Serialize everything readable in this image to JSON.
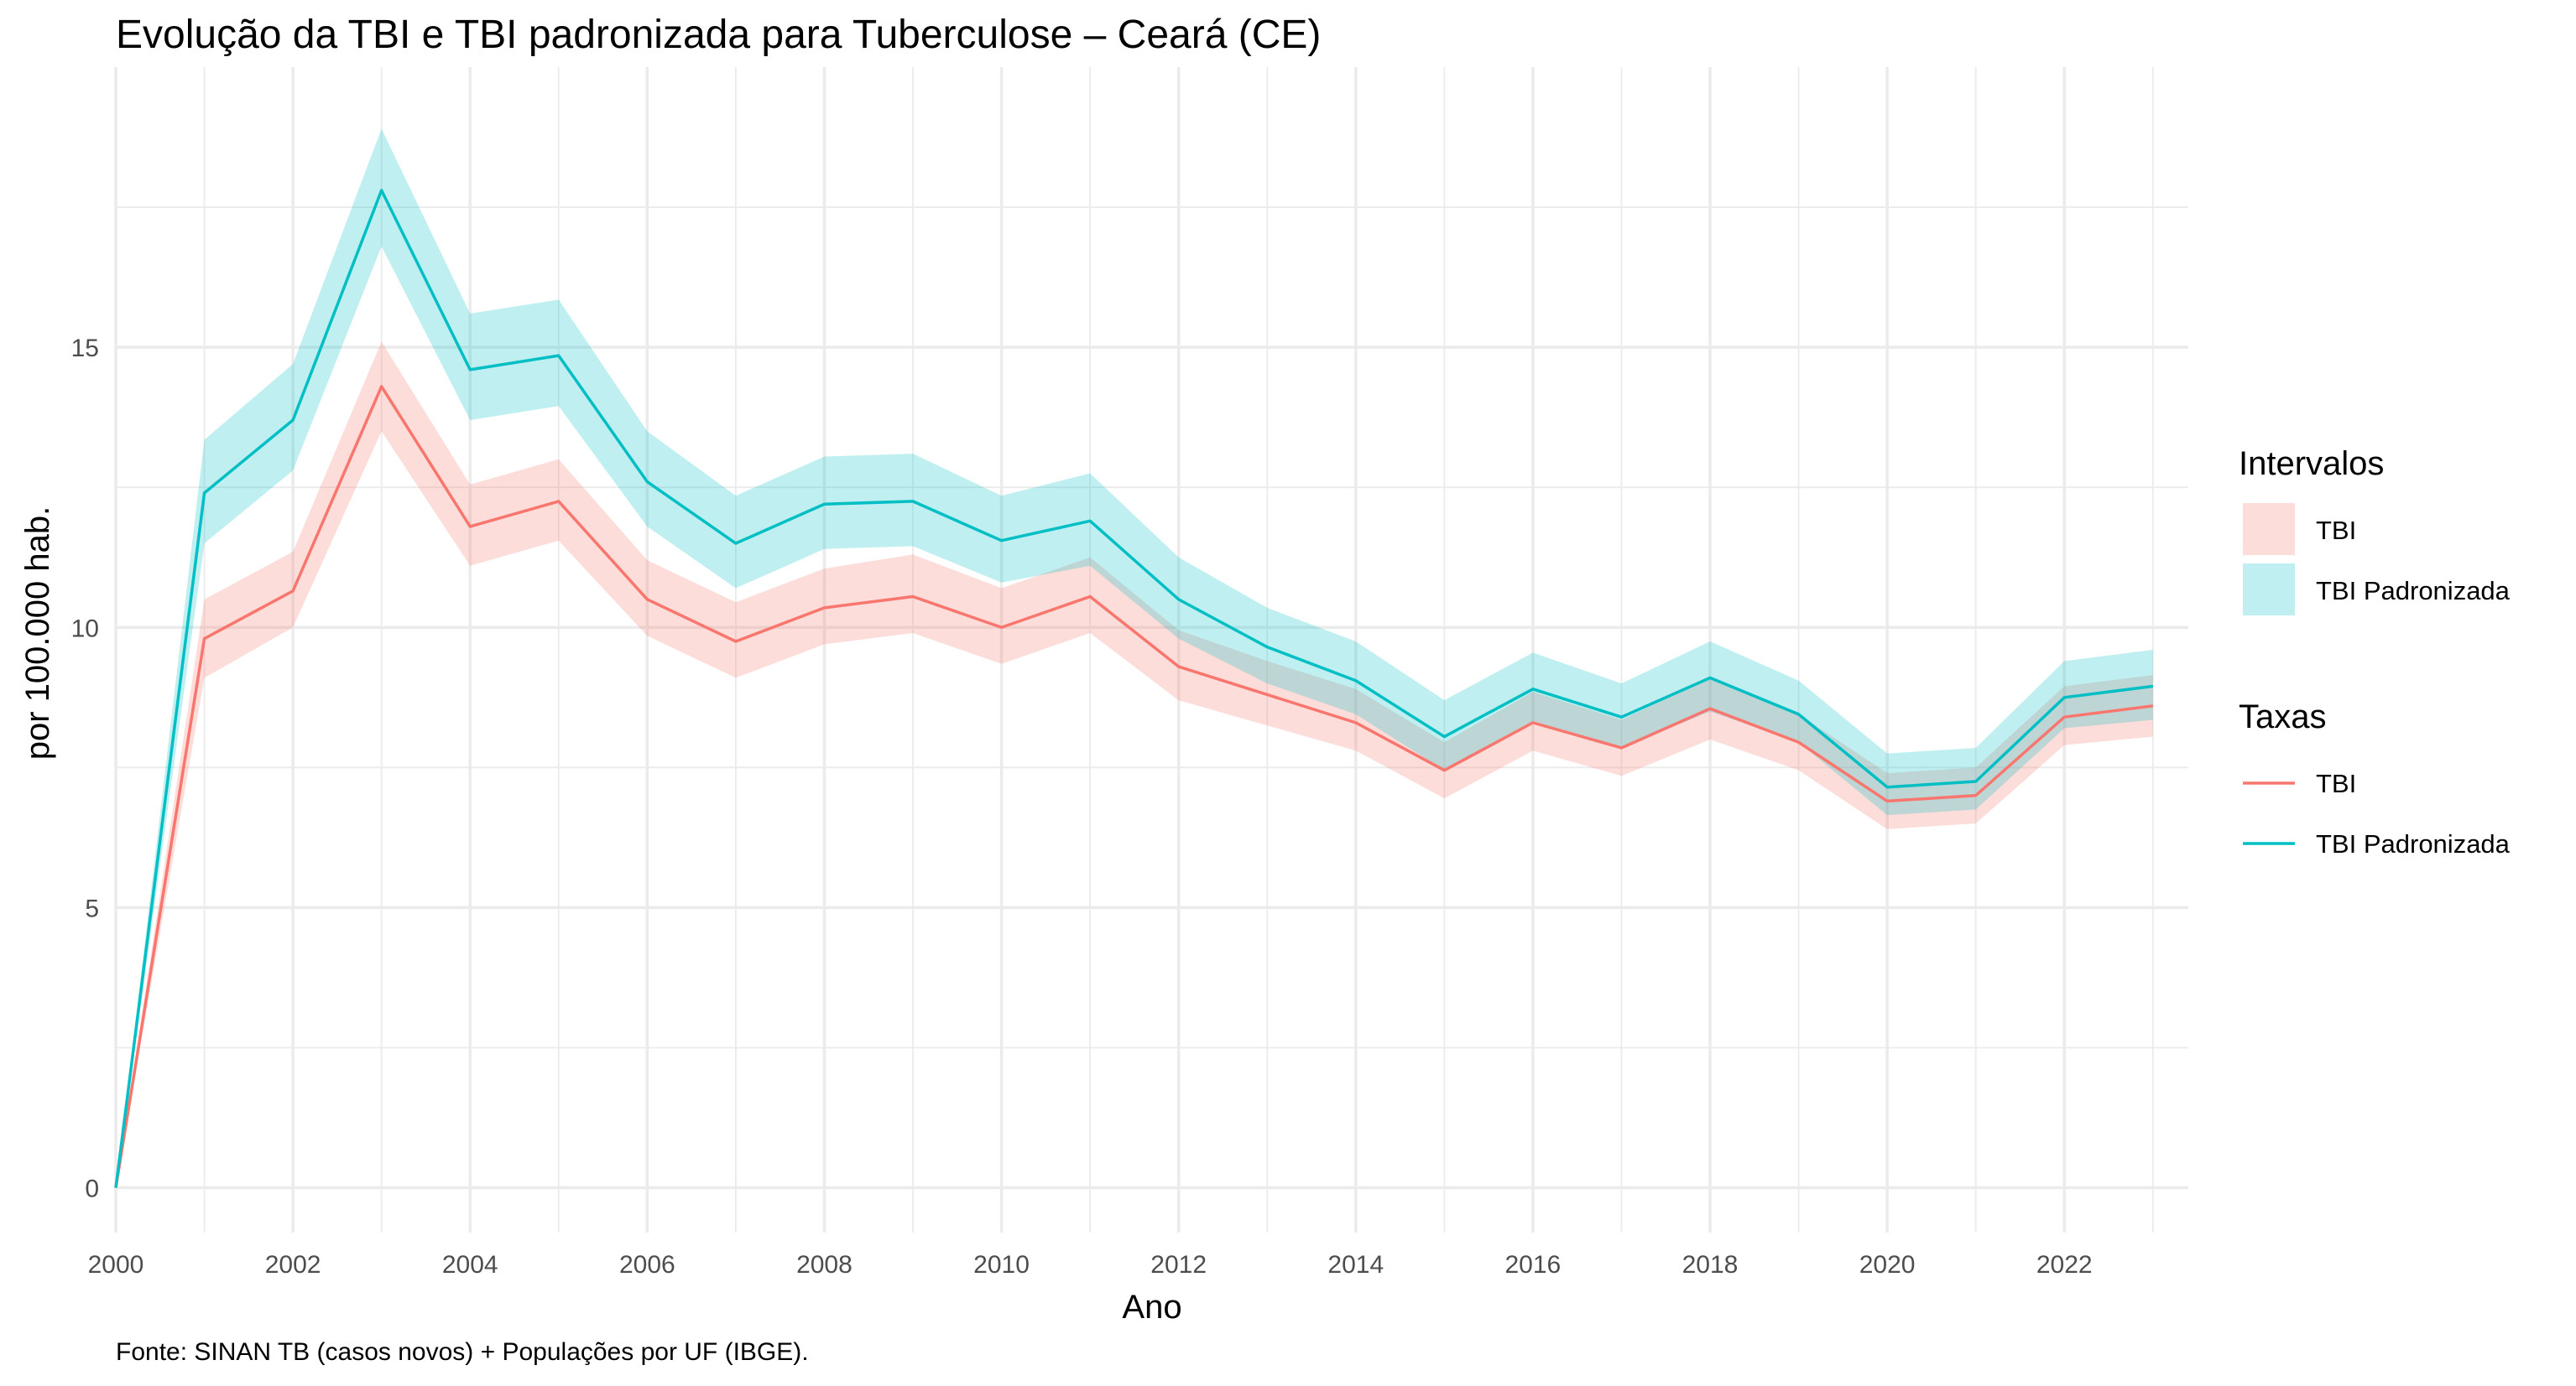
{
  "chart_data": {
    "type": "line",
    "title": "Evolução da TBI e TBI padronizada para Tuberculose – Ceará (CE)",
    "xlabel": "Ano",
    "ylabel": "por 100.000 hab.",
    "caption": "Fonte: SINAN TB (casos novos) + Populações por UF (IBGE).",
    "x": [
      2000,
      2001,
      2002,
      2003,
      2004,
      2005,
      2006,
      2007,
      2008,
      2009,
      2010,
      2011,
      2012,
      2013,
      2014,
      2015,
      2016,
      2017,
      2018,
      2019,
      2020,
      2021,
      2022,
      2023
    ],
    "xlim": [
      2000,
      2023.4
    ],
    "ylim": [
      -0.8,
      20
    ],
    "x_ticks": [
      "2000",
      "2002",
      "2004",
      "2006",
      "2008",
      "2010",
      "2012",
      "2014",
      "2016",
      "2018",
      "2020",
      "2022"
    ],
    "x_tick_values": [
      2000,
      2002,
      2004,
      2006,
      2008,
      2010,
      2012,
      2014,
      2016,
      2018,
      2020,
      2022
    ],
    "y_ticks": [
      "0",
      "5",
      "10",
      "15"
    ],
    "y_tick_values": [
      0,
      5,
      10,
      15
    ],
    "grid": true,
    "legend_position": "right",
    "series": [
      {
        "name": "TBI",
        "color": "#F8766D",
        "values": [
          0,
          9.8,
          10.65,
          14.3,
          11.8,
          12.25,
          10.5,
          9.75,
          10.35,
          10.55,
          10.0,
          10.55,
          9.3,
          8.8,
          8.3,
          7.45,
          8.3,
          7.85,
          8.55,
          7.95,
          6.9,
          7.0,
          8.4,
          8.6
        ],
        "lower": [
          0,
          9.1,
          10.0,
          13.5,
          11.1,
          11.55,
          9.85,
          9.1,
          9.7,
          9.9,
          9.35,
          9.9,
          8.7,
          8.25,
          7.8,
          6.95,
          7.8,
          7.35,
          8.0,
          7.45,
          6.4,
          6.5,
          7.9,
          8.05
        ],
        "upper": [
          0,
          10.5,
          11.35,
          15.1,
          12.55,
          13.0,
          11.2,
          10.45,
          11.05,
          11.3,
          10.7,
          11.25,
          9.95,
          9.4,
          8.9,
          7.95,
          8.85,
          8.35,
          9.1,
          8.45,
          7.4,
          7.5,
          8.95,
          9.15
        ]
      },
      {
        "name": "TBI Padronizada",
        "color": "#00BFC4",
        "values": [
          0,
          12.4,
          13.7,
          17.8,
          14.6,
          14.85,
          12.6,
          11.5,
          12.2,
          12.25,
          11.55,
          11.9,
          10.5,
          9.65,
          9.05,
          8.05,
          8.9,
          8.4,
          9.1,
          8.45,
          7.15,
          7.25,
          8.75,
          8.95
        ],
        "lower": [
          0,
          11.5,
          12.8,
          16.8,
          13.7,
          13.95,
          11.8,
          10.7,
          11.4,
          11.45,
          10.8,
          11.1,
          9.8,
          9.0,
          8.45,
          7.45,
          8.3,
          7.85,
          8.5,
          7.95,
          6.65,
          6.75,
          8.2,
          8.35
        ],
        "upper": [
          0,
          13.35,
          14.7,
          18.9,
          15.6,
          15.85,
          13.5,
          12.35,
          13.05,
          13.1,
          12.35,
          12.75,
          11.25,
          10.35,
          9.75,
          8.7,
          9.55,
          9.0,
          9.75,
          9.05,
          7.75,
          7.85,
          9.4,
          9.6
        ]
      }
    ],
    "legend": {
      "bands_title": "Intervalos",
      "lines_title": "Taxas",
      "items": [
        "TBI",
        "TBI Padronizada"
      ]
    }
  }
}
